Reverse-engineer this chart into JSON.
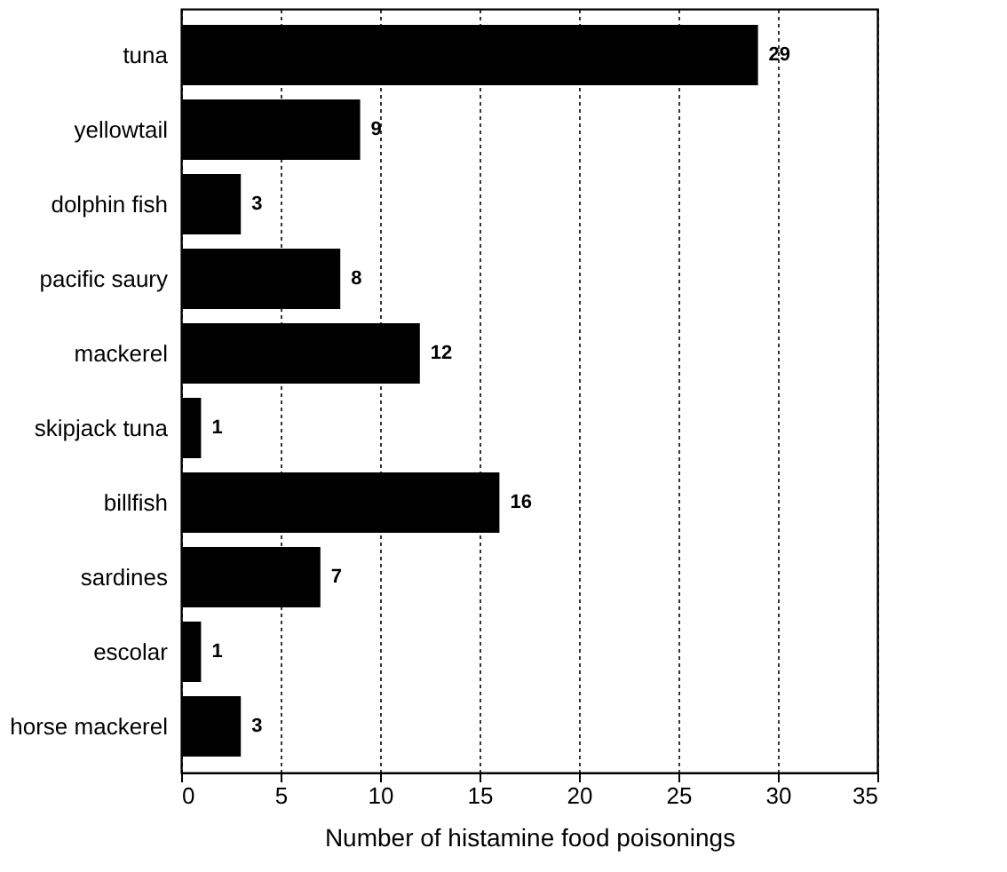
{
  "chart_data": {
    "type": "bar",
    "orientation": "horizontal",
    "xlabel": "Number of histamine food poisonings",
    "categories": [
      "tuna",
      "yellowtail",
      "dolphin fish",
      "pacific saury",
      "mackerel",
      "skipjack tuna",
      "billfish",
      "sardines",
      "escolar",
      "horse mackerel"
    ],
    "values": [
      29,
      9,
      3,
      8,
      12,
      1,
      16,
      7,
      1,
      3
    ],
    "color": "#000000",
    "xlim": [
      0,
      35
    ],
    "xticks": [
      0,
      5,
      10,
      15,
      20,
      25,
      30,
      35
    ],
    "grid": "x",
    "data_labels": true
  }
}
